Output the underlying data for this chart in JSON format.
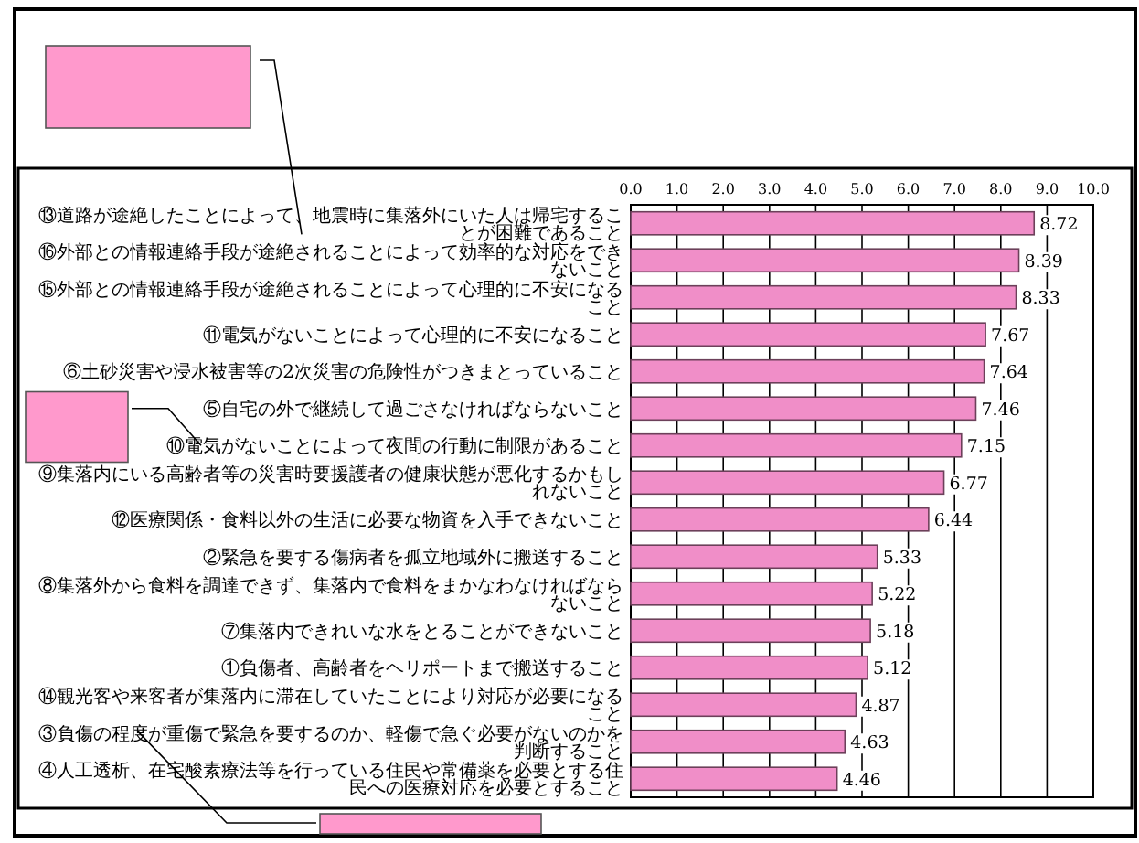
{
  "chart_data": {
    "type": "bar",
    "orientation": "horizontal",
    "categories": [
      "⑬道路が途絶したことによって、地震時に集落外にいた人は帰宅することが困難であること",
      "⑯外部との情報連絡手段が途絶されることによって効率的な対応をできないこと",
      "⑮外部との情報連絡手段が途絶されることによって心理的に不安になること",
      "⑪電気がないことによって心理的に不安になること",
      "⑥土砂災害や浸水被害等の2次災害の危険性がつきまとっていること",
      "⑤自宅の外で継続して過ごさなければならないこと",
      "⑩電気がないことによって夜間の行動に制限があること",
      "⑨集落内にいる高齢者等の災害時要援護者の健康状態が悪化するかもしれないこと",
      "⑫医療関係・食料以外の生活に必要な物資を入手できないこと",
      "②緊急を要する傷病者を孤立地域外に搬送すること",
      "⑧集落外から食料を調達できず、集落内で食料をまかなわなければならないこと",
      "⑦集落内できれいな水をとることができないこと",
      "①負傷者、高齢者をヘリポートまで搬送すること",
      "⑭観光客や来客者が集落内に滞在していたことにより対応が必要になること",
      "③負傷の程度が重傷で緊急を要するのか、軽傷で急ぐ必要がないのかを判断すること",
      "④人工透析、在宅酸素療法等を行っている住民や常備薬を必要とする住民への医療対応を必要とすること"
    ],
    "values": [
      8.72,
      8.39,
      8.33,
      7.67,
      7.64,
      7.46,
      7.15,
      6.77,
      6.44,
      5.33,
      5.22,
      5.18,
      5.12,
      4.87,
      4.63,
      4.46
    ],
    "color": "#f08ec8",
    "xlim": [
      0,
      10
    ],
    "xticks": [
      {
        "value": 0,
        "label": "0.0"
      },
      {
        "value": 1,
        "label": "1.0"
      },
      {
        "value": 2,
        "label": "2.0"
      },
      {
        "value": 3,
        "label": "3.0"
      },
      {
        "value": 4,
        "label": "4.0"
      },
      {
        "value": 5,
        "label": "5.0"
      },
      {
        "value": 6,
        "label": "6.0"
      },
      {
        "value": 7,
        "label": "7.0"
      },
      {
        "value": 8,
        "label": "8.0"
      },
      {
        "value": 9,
        "label": "9.0"
      },
      {
        "value": 10,
        "label": "10.0"
      }
    ],
    "grid": "x",
    "data_labels": true
  }
}
